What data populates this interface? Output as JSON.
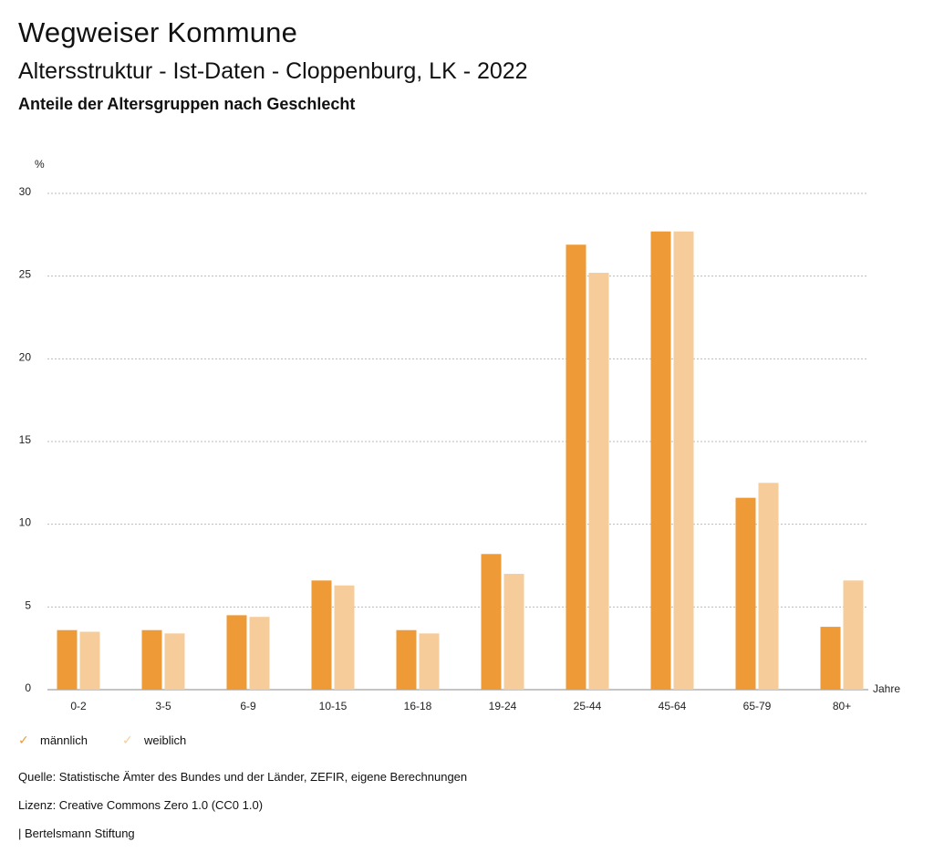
{
  "header": {
    "title": "Wegweiser Kommune",
    "subtitle": "Altersstruktur - Ist-Daten - Cloppenburg, LK - 2022",
    "subsubtitle": "Anteile der Altersgruppen nach Geschlecht"
  },
  "colors": {
    "male": "#EE9A36",
    "female": "#F5CC9A",
    "grid": "#bbbbbb",
    "axis": "#888888"
  },
  "legend": [
    {
      "label": "männlich",
      "icon": "check-icon",
      "color": "#EE9A36"
    },
    {
      "label": "weiblich",
      "icon": "check-icon",
      "color": "#F5CC9A"
    }
  ],
  "chart_data": {
    "type": "bar",
    "ylabel": "%",
    "xlabel": "Jahre",
    "ylim": [
      0,
      30
    ],
    "yticks": [
      0,
      5,
      10,
      15,
      20,
      25,
      30
    ],
    "grid": true,
    "legend_position": "bottom-left",
    "categories": [
      "0-2",
      "3-5",
      "6-9",
      "10-15",
      "16-18",
      "19-24",
      "25-44",
      "45-64",
      "65-79",
      "80+"
    ],
    "series": [
      {
        "name": "männlich",
        "values": [
          3.6,
          3.6,
          4.5,
          6.6,
          3.6,
          8.2,
          26.9,
          27.7,
          11.6,
          3.8
        ]
      },
      {
        "name": "weiblich",
        "values": [
          3.5,
          3.4,
          4.4,
          6.3,
          3.4,
          7.0,
          25.2,
          27.7,
          12.5,
          6.6
        ]
      }
    ]
  },
  "footer": {
    "source": "Quelle: Statistische Ämter des Bundes und der Länder, ZEFIR, eigene Berechnungen",
    "license": "Lizenz: Creative Commons Zero 1.0 (CC0 1.0)",
    "publisher": "| Bertelsmann Stiftung"
  }
}
